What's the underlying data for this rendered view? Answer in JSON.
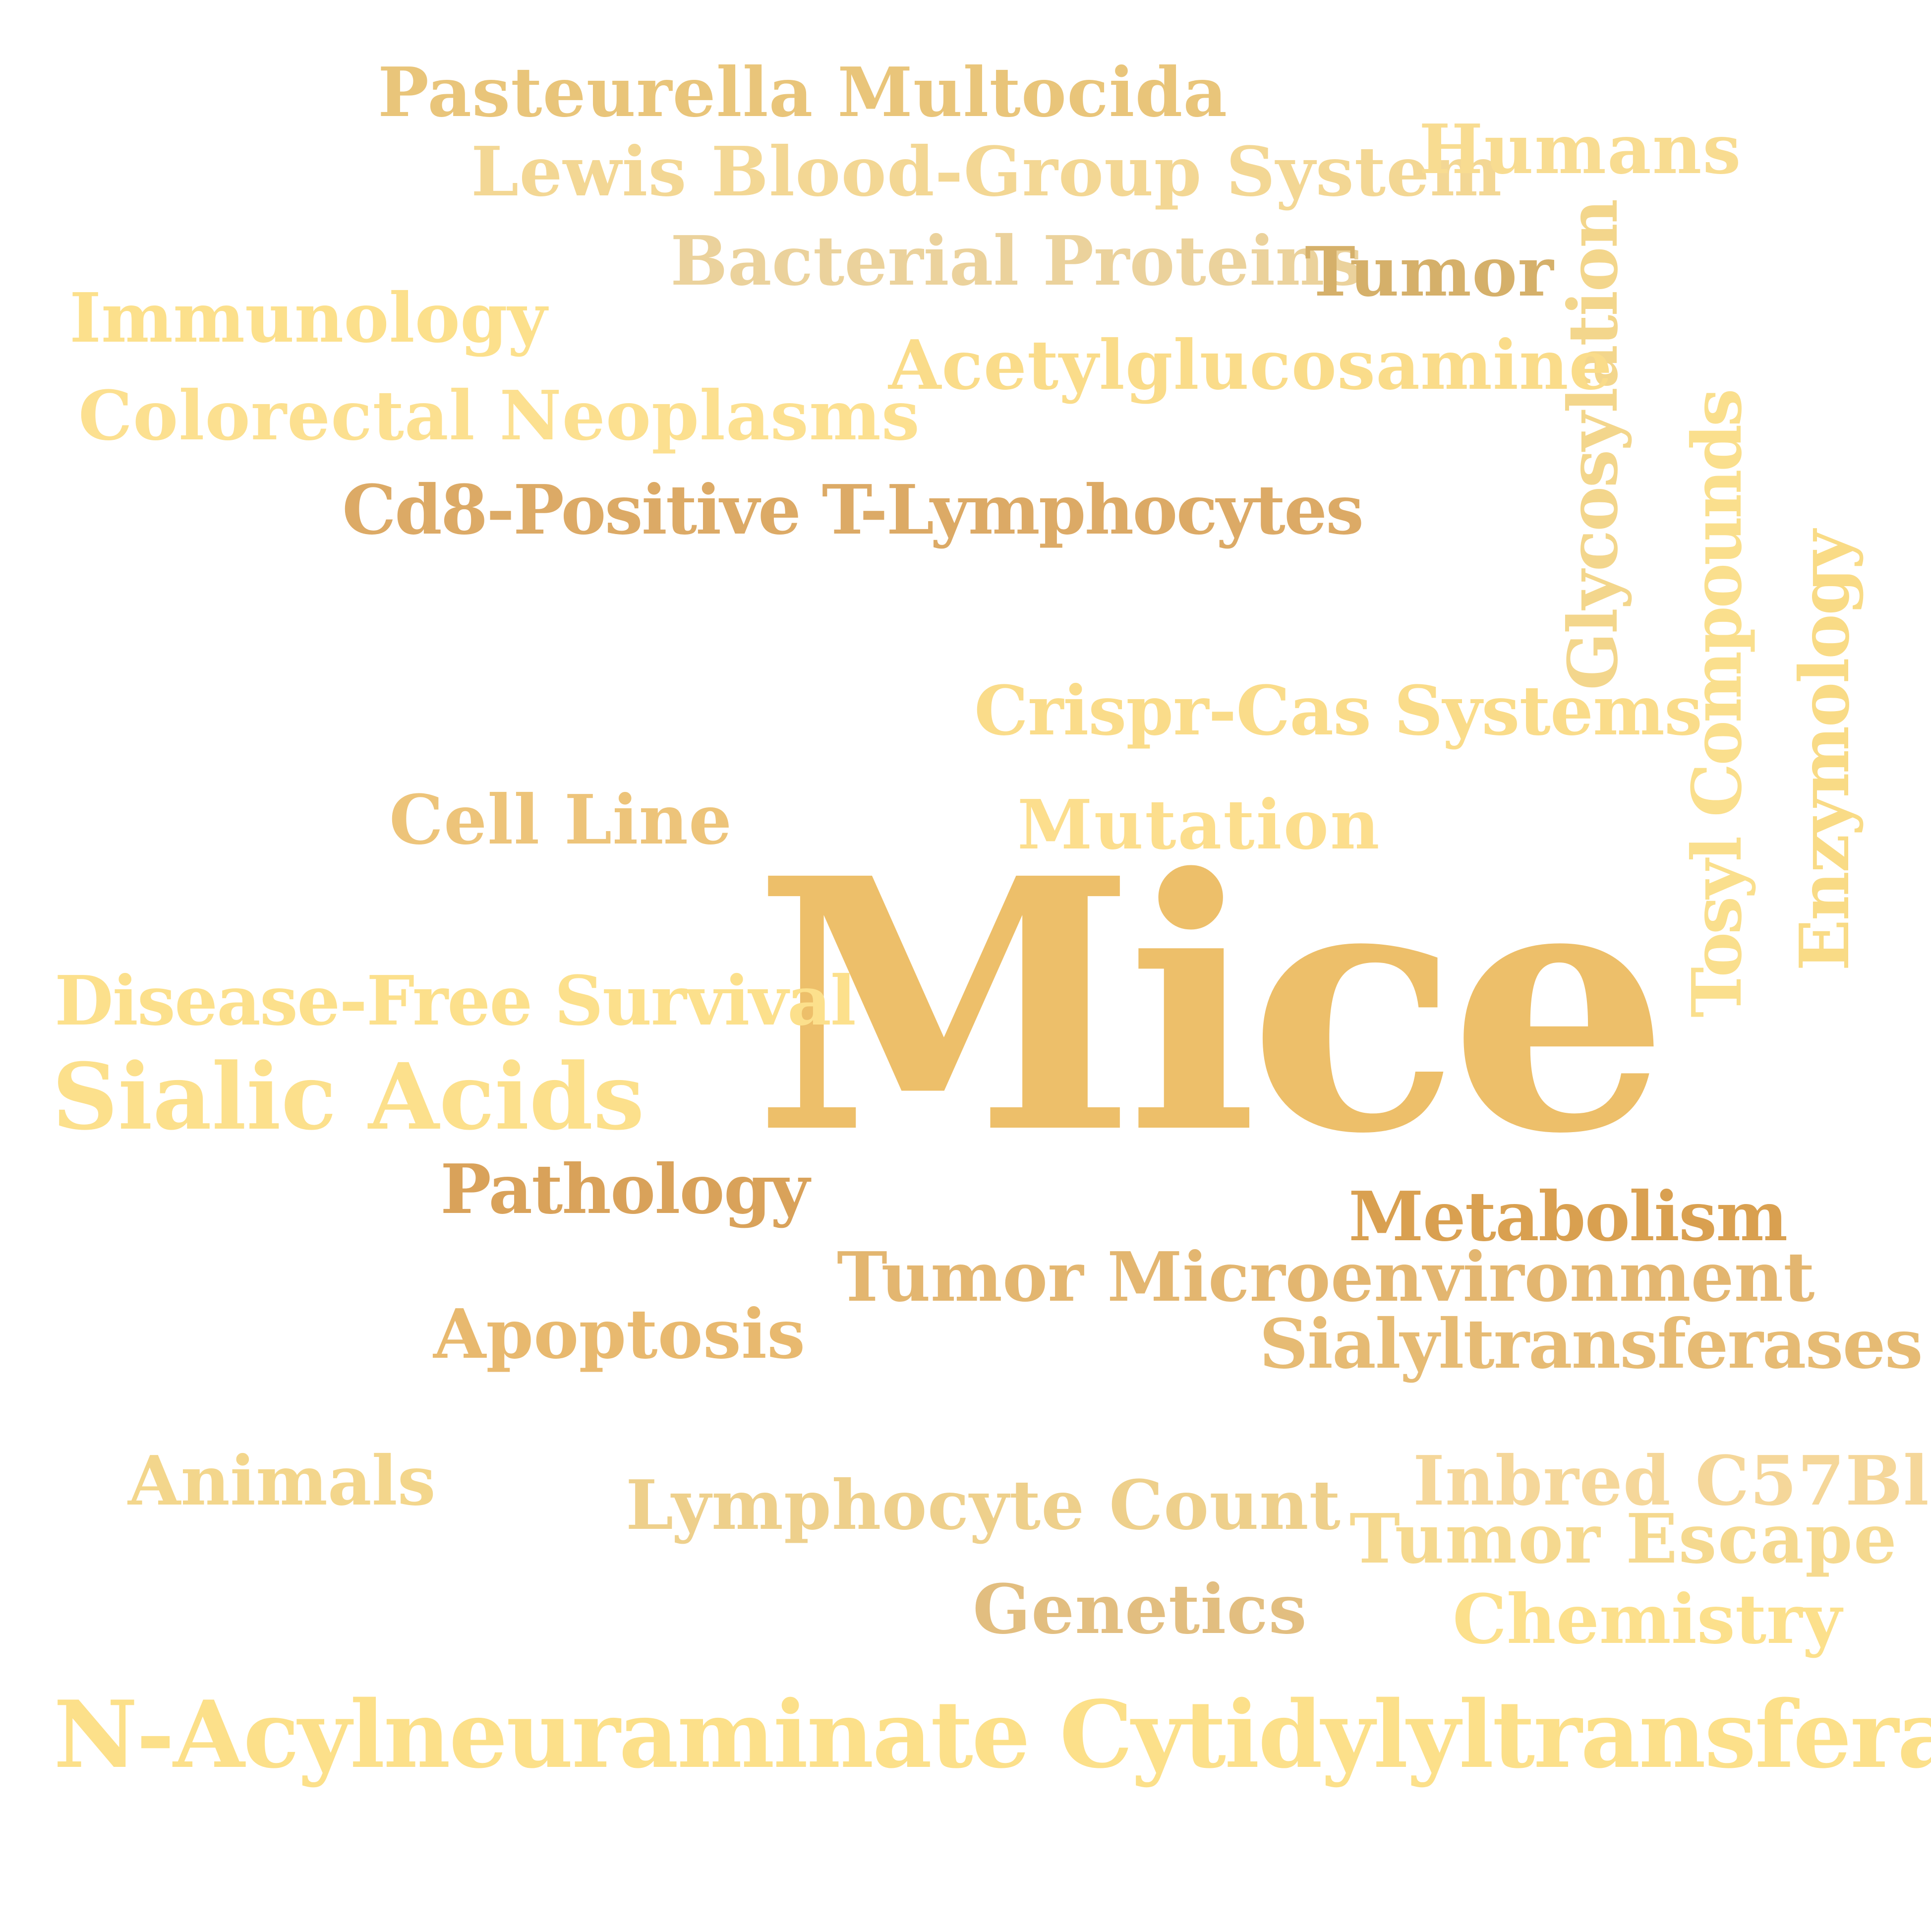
{
  "words": [
    {
      "key": "pasteurella",
      "text": "Pasteurella Multocida",
      "color": "#E9C57A"
    },
    {
      "key": "lewis",
      "text": "Lewis Blood-Group System",
      "color": "#F3D794"
    },
    {
      "key": "humans",
      "text": "Humans",
      "color": "#F8DC91"
    },
    {
      "key": "bacterial",
      "text": "Bacterial Proteins",
      "color": "#EBD29C"
    },
    {
      "key": "tumor",
      "text": "Tumor",
      "color": "#D5B06A"
    },
    {
      "key": "glycosylation",
      "text": "Glycosylation",
      "color": "#F3D68C"
    },
    {
      "key": "immunology",
      "text": "Immunology",
      "color": "#FCE08C"
    },
    {
      "key": "acetylglucosamine",
      "text": "Acetylglucosamine",
      "color": "#FADC8A"
    },
    {
      "key": "colorectal",
      "text": "Colorectal Neoplasms",
      "color": "#FCE090"
    },
    {
      "key": "cd8",
      "text": "Cd8-Positive T-Lymphocytes",
      "color": "#DCAA66"
    },
    {
      "key": "tosyl",
      "text": "Tosyl Compounds",
      "color": "#FADF8D"
    },
    {
      "key": "enzymology",
      "text": "Enzymology",
      "color": "#F9DB86"
    },
    {
      "key": "crispr",
      "text": "Crispr-Cas Systems",
      "color": "#FADC8A"
    },
    {
      "key": "cellline",
      "text": "Cell Line",
      "color": "#EDC47A"
    },
    {
      "key": "mutation",
      "text": "Mutation",
      "color": "#FCDE8D"
    },
    {
      "key": "mice",
      "text": "Mice",
      "color": "#EDBF6A"
    },
    {
      "key": "diseasefree",
      "text": "Disease-Free Survival",
      "color": "#FCE08C"
    },
    {
      "key": "sialic",
      "text": "Sialic Acids",
      "color": "#FCE08C"
    },
    {
      "key": "pathology",
      "text": "Pathology",
      "color": "#D9A25A"
    },
    {
      "key": "metabolism",
      "text": "Metabolism",
      "color": "#D9A050"
    },
    {
      "key": "tumormicro",
      "text": "Tumor Microenvironment",
      "color": "#E3B670"
    },
    {
      "key": "apoptosis",
      "text": "Apoptosis",
      "color": "#E8B96F"
    },
    {
      "key": "sialyl",
      "text": "Sialyltransferases",
      "color": "#E6BB74"
    },
    {
      "key": "animals",
      "text": "Animals",
      "color": "#F3D68C"
    },
    {
      "key": "lymphocyte",
      "text": "Lymphocyte Count",
      "color": "#EED08C"
    },
    {
      "key": "inbred",
      "text": "Inbred C57Bl",
      "color": "#F5D79A"
    },
    {
      "key": "tumorescape",
      "text": "Tumor Escape",
      "color": "#F5D98F"
    },
    {
      "key": "genetics",
      "text": "Genetics",
      "color": "#E2BE80"
    },
    {
      "key": "chemistry",
      "text": "Chemistry",
      "color": "#FCE08C"
    },
    {
      "key": "nacyl",
      "text": "N-Acylneuraminate Cytidylyltransferase",
      "color": "#FCE08A"
    }
  ]
}
